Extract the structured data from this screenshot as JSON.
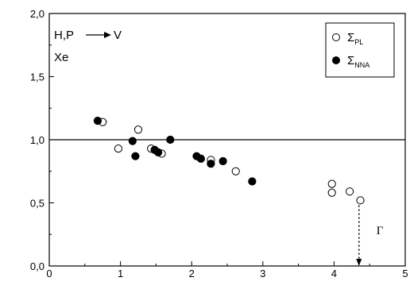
{
  "chart_data": {
    "type": "scatter",
    "xlim": [
      0,
      5
    ],
    "ylim": [
      0.0,
      2.0
    ],
    "x_ticks": [
      0,
      1,
      2,
      3,
      4,
      5
    ],
    "y_ticks": [
      0.0,
      0.5,
      1.0,
      1.5,
      2.0
    ],
    "x_tick_labels": [
      "0",
      "1",
      "2",
      "3",
      "4",
      "5"
    ],
    "y_tick_labels": [
      "0,0",
      "0,5",
      "1,0",
      "1,5",
      "2,0"
    ],
    "reference_line_y": 1.0,
    "grid": false,
    "legend_position": "top-right",
    "annotations": {
      "transition_prefix": "H,P",
      "transition_suffix": "V",
      "element": "Xe",
      "gamma": "Γ",
      "gamma_arrow_x": 4.35,
      "gamma_arrow_from_y": 0.48,
      "gamma_arrow_to_y": 0.0
    },
    "series": [
      {
        "name": "Σ",
        "subscript": "PL",
        "marker": "open-circle",
        "points": [
          {
            "x": 0.75,
            "y": 1.14
          },
          {
            "x": 0.97,
            "y": 0.93
          },
          {
            "x": 1.25,
            "y": 1.08
          },
          {
            "x": 1.43,
            "y": 0.93
          },
          {
            "x": 1.58,
            "y": 0.89
          },
          {
            "x": 2.27,
            "y": 0.84
          },
          {
            "x": 2.62,
            "y": 0.75
          },
          {
            "x": 3.97,
            "y": 0.65
          },
          {
            "x": 3.97,
            "y": 0.58
          },
          {
            "x": 4.22,
            "y": 0.59
          },
          {
            "x": 4.37,
            "y": 0.52
          }
        ]
      },
      {
        "name": "Σ",
        "subscript": "NNA",
        "marker": "filled-circle",
        "points": [
          {
            "x": 0.68,
            "y": 1.15
          },
          {
            "x": 1.17,
            "y": 0.99
          },
          {
            "x": 1.21,
            "y": 0.87
          },
          {
            "x": 1.48,
            "y": 0.92
          },
          {
            "x": 1.53,
            "y": 0.9
          },
          {
            "x": 1.7,
            "y": 1.0
          },
          {
            "x": 2.07,
            "y": 0.87
          },
          {
            "x": 2.13,
            "y": 0.85
          },
          {
            "x": 2.27,
            "y": 0.81
          },
          {
            "x": 2.44,
            "y": 0.83
          },
          {
            "x": 2.85,
            "y": 0.67
          }
        ]
      }
    ]
  }
}
